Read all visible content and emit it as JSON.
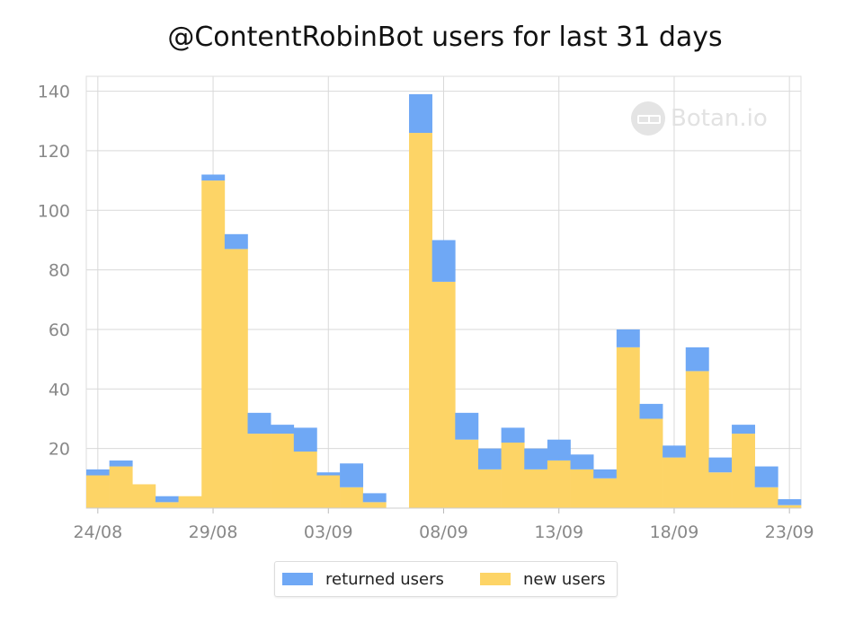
{
  "chart_data": {
    "type": "bar",
    "stacked": true,
    "title": "@ContentRobinBot users for last 31 days",
    "xlabel": "",
    "ylabel": "",
    "ylim": [
      0,
      145
    ],
    "yticks": [
      20,
      40,
      60,
      80,
      100,
      120,
      140
    ],
    "xtick_labels": [
      {
        "label": "24/08",
        "index": 0
      },
      {
        "label": "29/08",
        "index": 5
      },
      {
        "label": "03/09",
        "index": 10
      },
      {
        "label": "08/09",
        "index": 15
      },
      {
        "label": "13/09",
        "index": 20
      },
      {
        "label": "18/09",
        "index": 25
      },
      {
        "label": "23/09",
        "index": 30
      }
    ],
    "categories": [
      "24/08",
      "25/08",
      "26/08",
      "27/08",
      "28/08",
      "29/08",
      "30/08",
      "31/08",
      "01/09",
      "02/09",
      "03/09",
      "04/09",
      "05/09",
      "06/09",
      "07/09",
      "08/09",
      "09/09",
      "10/09",
      "11/09",
      "12/09",
      "13/09",
      "14/09",
      "15/09",
      "16/09",
      "17/09",
      "18/09",
      "19/09",
      "20/09",
      "21/09",
      "22/09",
      "23/09"
    ],
    "series": [
      {
        "name": "new users",
        "color": "#fdd466",
        "values": [
          11,
          14,
          8,
          2,
          4,
          110,
          87,
          25,
          25,
          19,
          11,
          7,
          2,
          0,
          126,
          76,
          23,
          13,
          22,
          13,
          16,
          13,
          10,
          54,
          30,
          17,
          46,
          12,
          25,
          7,
          1
        ]
      },
      {
        "name": "returned users",
        "color": "#6fa8f5",
        "values": [
          2,
          2,
          0,
          2,
          0,
          2,
          5,
          7,
          3,
          8,
          1,
          8,
          3,
          0,
          13,
          14,
          9,
          7,
          5,
          7,
          7,
          5,
          3,
          6,
          5,
          4,
          8,
          5,
          3,
          7,
          2
        ]
      }
    ],
    "grid": true,
    "legend_position": "bottom-center",
    "watermark": "Botan.io"
  }
}
